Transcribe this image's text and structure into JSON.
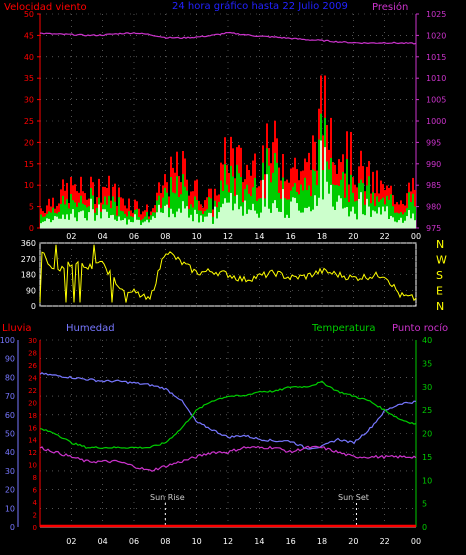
{
  "colors": {
    "wind": "#ff0000",
    "wind_avg": "#00cc00",
    "wind_min": "#ccffcc",
    "pressure": "#cc33cc",
    "direction": "#ffff00",
    "rain": "#ff0000",
    "humidity": "#7777ff",
    "temperature": "#00cc00",
    "dewpoint": "#cc33cc",
    "title": "#2222ff",
    "grid": "#888888"
  },
  "top": {
    "left_label": "Velocidad viento",
    "title": "24 hora gráfico hasta  22 Julio 2009",
    "right_label": "Presión",
    "left_ticks": [
      "0",
      "5",
      "10",
      "15",
      "20",
      "25",
      "30",
      "35",
      "40",
      "45",
      "50"
    ],
    "right_ticks": [
      "975",
      "980",
      "985",
      "990",
      "995",
      "1000",
      "1005",
      "1010",
      "1015",
      "1020",
      "1025"
    ]
  },
  "middle": {
    "left_ticks": [
      "0",
      "90",
      "180",
      "270",
      "360"
    ],
    "right_labels": [
      "N",
      "W",
      "S",
      "E",
      "N"
    ]
  },
  "bottom": {
    "lluvia_label": "Lluvia",
    "humedad_label": "Humedad",
    "temperatura_label": "Temperatura",
    "rocio_label": "Punto rocío",
    "hum_ticks": [
      "0",
      "10",
      "20",
      "30",
      "40",
      "50",
      "60",
      "70",
      "80",
      "90",
      "100"
    ],
    "rain_ticks": [
      "0",
      "2",
      "4",
      "6",
      "8",
      "10",
      "12",
      "14",
      "16",
      "18",
      "20",
      "22",
      "24",
      "26",
      "28",
      "30"
    ],
    "temp_ticks": [
      "0",
      "5",
      "10",
      "15",
      "20",
      "25",
      "30",
      "35",
      "40"
    ],
    "sunrise_label": "Sun Rise",
    "sunset_label": "Sun Set"
  },
  "x_ticks": [
    "02",
    "04",
    "06",
    "08",
    "10",
    "12",
    "14",
    "16",
    "18",
    "20",
    "22",
    "00"
  ],
  "chart_data": [
    {
      "type": "area",
      "title": "24 hora gráfico hasta  22 Julio 2009",
      "x": [
        0,
        1,
        2,
        3,
        4,
        5,
        6,
        7,
        8,
        9,
        10,
        11,
        12,
        13,
        14,
        15,
        16,
        17,
        18,
        19,
        20,
        21,
        22,
        23,
        24
      ],
      "series": [
        {
          "name": "Velocidad viento",
          "values": [
            5,
            8,
            10,
            9,
            11,
            8,
            6,
            4,
            12,
            15,
            9,
            7,
            20,
            14,
            18,
            20,
            16,
            14,
            30,
            22,
            16,
            12,
            9,
            8,
            10
          ]
        },
        {
          "name": "Presión",
          "values": [
            1020.5,
            1020.3,
            1020.2,
            1020.0,
            1020.1,
            1020.4,
            1020.6,
            1020.2,
            1019.5,
            1019.4,
            1019.6,
            1020.0,
            1020.6,
            1020.2,
            1019.8,
            1019.6,
            1019.3,
            1019.0,
            1018.8,
            1018.5,
            1018.3,
            1018.2,
            1018.3,
            1018.2,
            1018.1
          ]
        }
      ],
      "ylim": [
        0,
        50
      ],
      "y2lim": [
        975,
        1025
      ]
    },
    {
      "type": "line",
      "x": [
        0,
        1,
        2,
        3,
        4,
        5,
        6,
        7,
        8,
        9,
        10,
        11,
        12,
        13,
        14,
        15,
        16,
        17,
        18,
        19,
        20,
        21,
        22,
        23,
        24
      ],
      "series": [
        {
          "name": "direction",
          "values": [
            315,
            200,
            250,
            220,
            240,
            120,
            80,
            30,
            320,
            250,
            190,
            200,
            180,
            150,
            170,
            190,
            160,
            170,
            200,
            180,
            160,
            170,
            180,
            60,
            40
          ]
        }
      ],
      "ylim": [
        0,
        360
      ]
    },
    {
      "type": "line",
      "x": [
        0,
        1,
        2,
        3,
        4,
        5,
        6,
        7,
        8,
        9,
        10,
        11,
        12,
        13,
        14,
        15,
        16,
        17,
        18,
        19,
        20,
        21,
        22,
        23,
        24
      ],
      "series": [
        {
          "name": "Humedad",
          "values": [
            82,
            81,
            80,
            79,
            78,
            78,
            77,
            76,
            74,
            68,
            56,
            52,
            48,
            49,
            47,
            46,
            46,
            42,
            43,
            47,
            45,
            52,
            62,
            66,
            67
          ]
        },
        {
          "name": "Temperatura",
          "values": [
            21,
            20,
            18,
            17,
            17,
            17,
            17,
            17,
            18,
            21,
            25,
            27,
            28,
            28,
            29,
            29,
            30,
            30,
            31,
            29,
            28,
            27,
            25,
            23,
            22
          ]
        },
        {
          "name": "Punto rocío",
          "values": [
            17,
            16,
            15,
            14,
            14,
            14,
            13,
            12,
            13,
            14,
            15,
            16,
            16,
            17,
            17,
            17,
            16,
            17,
            17,
            16,
            15,
            15,
            15,
            15,
            15
          ]
        },
        {
          "name": "Lluvia",
          "values": [
            0,
            0,
            0,
            0,
            0,
            0,
            0,
            0,
            0,
            0,
            0,
            0,
            0,
            0,
            0,
            0,
            0,
            0,
            0,
            0,
            0,
            0,
            0,
            0,
            0
          ]
        }
      ],
      "hum_lim": [
        0,
        100
      ],
      "temp_lim": [
        0,
        40
      ],
      "rain_lim": [
        0,
        30
      ]
    }
  ]
}
